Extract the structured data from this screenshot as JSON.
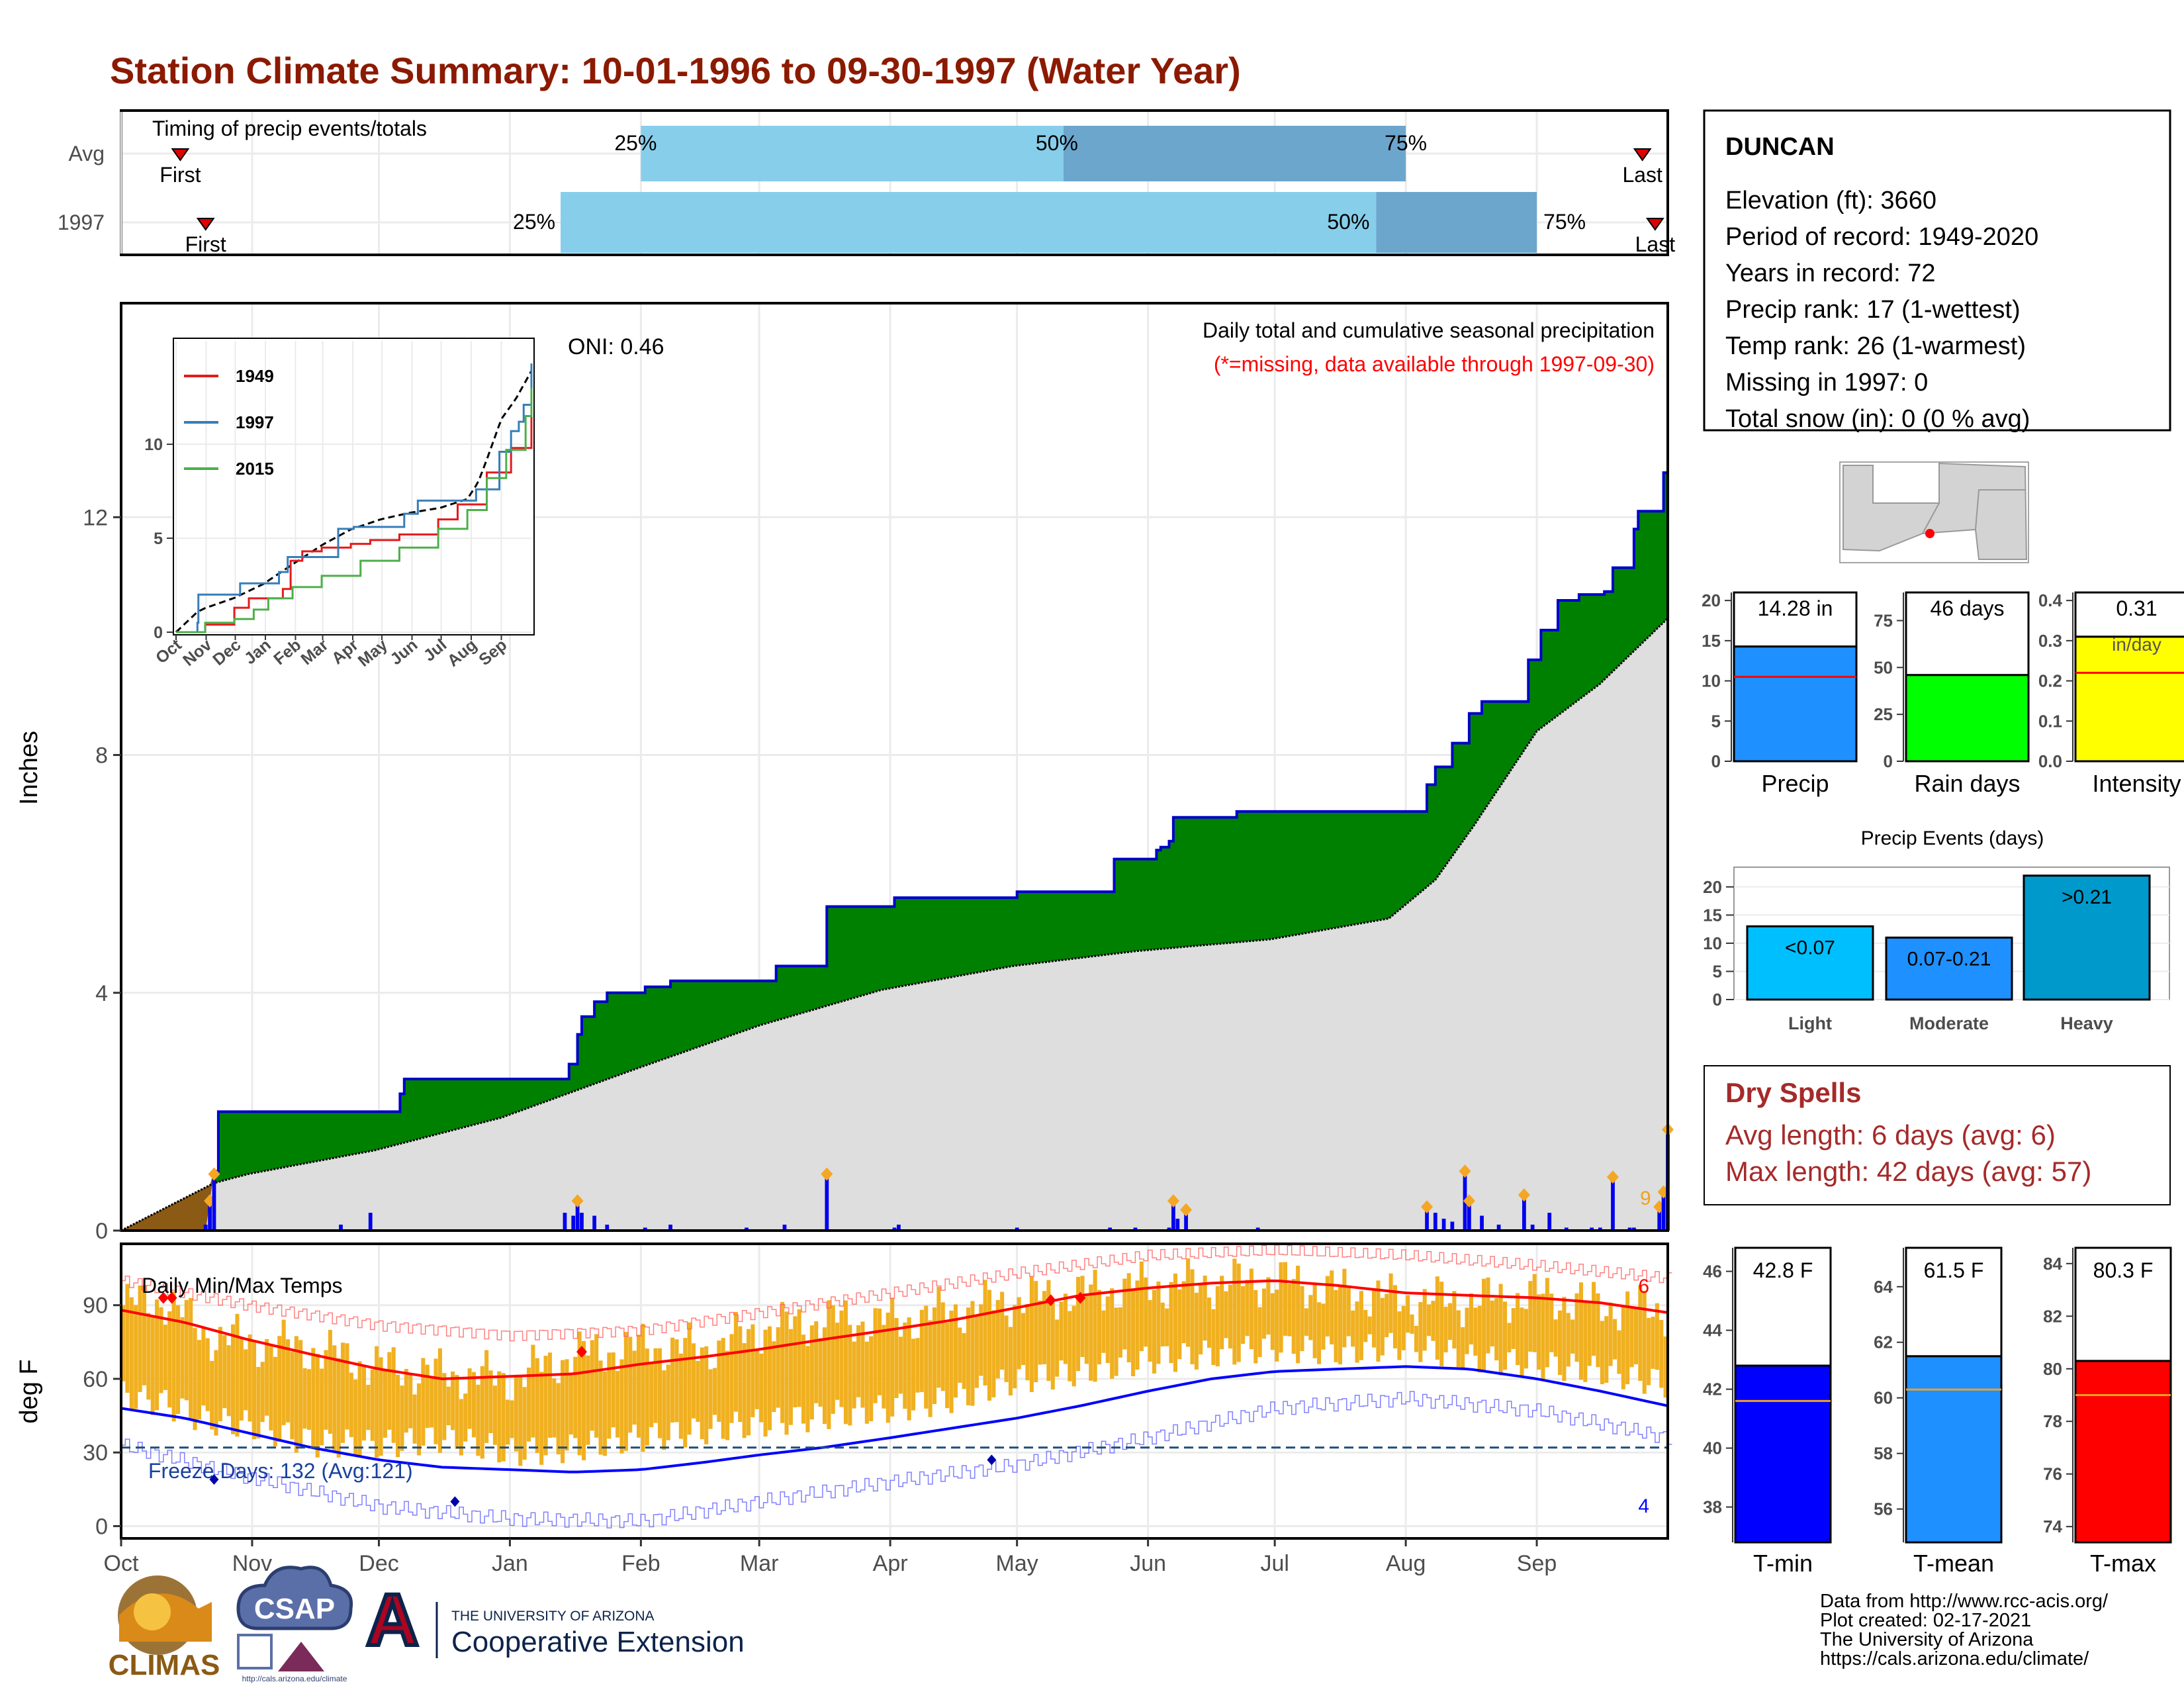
{
  "title": "Station Climate Summary: 10-01-1996 to 09-30-1997 (Water Year)",
  "colors": {
    "title": "#8B1A00",
    "green": "#008000",
    "blue_line": "#0000CC",
    "gray_fill": "#DEDEDE",
    "brown": "#8B5A14",
    "orange": "#F0B020",
    "tmax_line": "#FF0000",
    "tmin_line": "#0000FF",
    "light_blue": "#87CEEB",
    "steel_blue": "#6CA6CD",
    "dry_red": "#A52A2A"
  },
  "timing": {
    "label": "Timing of precip events/totals",
    "rows": [
      {
        "name": "Avg",
        "first": "First",
        "last": "Last",
        "p25": "25%",
        "p50": "50%",
        "p75": "75%",
        "first_date": "1996-10-15",
        "p25_date": "1997-02-01",
        "p50_date": "1997-05-12",
        "p75_date": "1997-08-01",
        "last_date": "1997-09-26"
      },
      {
        "name": "1997",
        "first": "First",
        "last": "Last",
        "p25": "25%",
        "p50": "50%",
        "p75": "75%",
        "first_date": "1996-10-21",
        "p25_date": "1997-01-13",
        "p50_date": "1997-07-25",
        "p75_date": "1997-09-01",
        "last_date": "1997-09-29"
      }
    ]
  },
  "precip_panel": {
    "ylabel": "Inches",
    "header": "Daily total and cumulative seasonal precipitation",
    "missing_note": "(*=missing, data available through 1997-09-30)",
    "oni": "ONI: 0.46",
    "count_label": "9",
    "yticks": [
      "0",
      "4",
      "8",
      "12"
    ],
    "inset": {
      "series": [
        {
          "name": "1949",
          "color": "#E41A1C"
        },
        {
          "name": "1997",
          "color": "#377EB8"
        },
        {
          "name": "2015",
          "color": "#4DAF4A"
        }
      ],
      "yticks": [
        "0",
        "5",
        "10"
      ],
      "xticks": [
        "Oct",
        "Nov",
        "Dec",
        "Jan",
        "Feb",
        "Mar",
        "Apr",
        "May",
        "Jun",
        "Jul",
        "Aug",
        "Sep"
      ]
    }
  },
  "temp_panel": {
    "ylabel": "deg F",
    "header": "Daily Min/Max Temps",
    "freeze_label": "Freeze Days: 132 (Avg:121)",
    "max_count": "6",
    "min_count": "4",
    "yticks": [
      "0",
      "30",
      "60",
      "90"
    ]
  },
  "x_months": [
    "Oct",
    "Nov",
    "Dec",
    "Jan",
    "Feb",
    "Mar",
    "Apr",
    "May",
    "Jun",
    "Jul",
    "Aug",
    "Sep"
  ],
  "station": {
    "name": "DUNCAN",
    "lines": [
      "Elevation (ft): 3660",
      "Period of record: 1949-2020",
      "Years in record: 72",
      "Precip rank: 17 (1-wettest)",
      "Temp rank: 26 (1-warmest)",
      "Missing in 1997: 0",
      "Total snow (in): 0 (0 % avg)"
    ]
  },
  "mini_bars": [
    {
      "label": "Precip",
      "value_text": "14.28 in",
      "value": 14.28,
      "avg": 10.5,
      "ymax": 21,
      "yticks": [
        "0",
        "5",
        "10",
        "15",
        "20"
      ],
      "tickvals": [
        0,
        5,
        10,
        15,
        20
      ],
      "color": "#1E90FF"
    },
    {
      "label": "Rain days",
      "value_text": "46 days",
      "value": 46,
      "avg": 47,
      "ymax": 90,
      "yticks": [
        "0",
        "25",
        "50",
        "75"
      ],
      "tickvals": [
        0,
        25,
        50,
        75
      ],
      "color": "#00FF00"
    },
    {
      "label": "Intensity",
      "value_text": "0.31",
      "value_text2": "in/day",
      "value": 0.31,
      "avg": 0.22,
      "ymax": 0.42,
      "yticks": [
        "0.0",
        "0.1",
        "0.2",
        "0.3",
        "0.4"
      ],
      "tickvals": [
        0,
        0.1,
        0.2,
        0.3,
        0.4
      ],
      "color": "#FFFF00"
    }
  ],
  "events": {
    "title": "Precip Events (days)",
    "yticks": [
      "0",
      "5",
      "10",
      "15",
      "20"
    ],
    "bars": [
      {
        "label": "Light",
        "range": "<0.07",
        "value": 13
      },
      {
        "label": "Moderate",
        "range": "0.07-0.21",
        "value": 11
      },
      {
        "label": "Heavy",
        "range": ">0.21",
        "value": 22
      }
    ]
  },
  "dry_spells": {
    "title": "Dry Spells",
    "avg": "Avg length: 6 days (avg: 6)",
    "max": "Max length: 42 days (avg: 57)"
  },
  "temp_bars": [
    {
      "label": "T-min",
      "value_text": "42.8 F",
      "value": 42.8,
      "avg": 41.6,
      "ymin": 36.8,
      "ymax": 46.8,
      "yticks": [
        "38",
        "40",
        "42",
        "44",
        "46"
      ],
      "tickvals": [
        38,
        40,
        42,
        44,
        46
      ],
      "color": "#0000FF"
    },
    {
      "label": "T-mean",
      "value_text": "61.5 F",
      "value": 61.5,
      "avg": 60.3,
      "ymin": 54.8,
      "ymax": 65.4,
      "yticks": [
        "56",
        "58",
        "60",
        "62",
        "64"
      ],
      "tickvals": [
        56,
        58,
        60,
        62,
        64
      ],
      "color": "#1E90FF"
    },
    {
      "label": "T-max",
      "value_text": "80.3 F",
      "value": 80.3,
      "avg": 79.0,
      "ymin": 73.4,
      "ymax": 84.6,
      "yticks": [
        "74",
        "76",
        "78",
        "80",
        "82",
        "84"
      ],
      "tickvals": [
        74,
        76,
        78,
        80,
        82,
        84
      ],
      "color": "#FF0000"
    }
  ],
  "footer": {
    "lines": [
      "Data from http://www.rcc-acis.org/",
      "Plot created: 02-17-2021",
      "The University of Arizona",
      "https://cals.arizona.edu/climate/"
    ]
  },
  "logos": {
    "climas": "CLIMAS",
    "csap": "CSAP",
    "csap_url": "http://cals.arizona.edu/climate",
    "ua_small": "THE UNIVERSITY OF ARIZONA",
    "ua_big": "Cooperative Extension",
    "ua_letter": "A"
  },
  "chart_data": [
    {
      "type": "area",
      "title": "Daily total and cumulative seasonal precipitation",
      "ylabel": "Inches",
      "ylim": [
        0,
        15.6
      ],
      "x_start": "1996-10-01",
      "x_end": "1997-09-30",
      "cumulative_1997": [
        [
          0,
          0
        ],
        [
          20,
          0
        ],
        [
          21,
          0.5
        ],
        [
          22,
          1.0
        ],
        [
          23,
          2.0
        ],
        [
          55,
          2.0
        ],
        [
          66,
          2.3
        ],
        [
          67,
          2.55
        ],
        [
          105,
          2.55
        ],
        [
          106,
          2.8
        ],
        [
          108,
          3.3
        ],
        [
          109,
          3.6
        ],
        [
          112,
          3.85
        ],
        [
          115,
          4.0
        ],
        [
          124,
          4.1
        ],
        [
          130,
          4.2
        ],
        [
          154,
          4.2
        ],
        [
          155,
          4.45
        ],
        [
          166,
          4.45
        ],
        [
          167,
          5.45
        ],
        [
          182,
          5.45
        ],
        [
          183,
          5.6
        ],
        [
          211,
          5.6
        ],
        [
          212,
          5.7
        ],
        [
          234,
          5.7
        ],
        [
          235,
          6.25
        ],
        [
          244,
          6.25
        ],
        [
          245,
          6.4
        ],
        [
          246,
          6.45
        ],
        [
          248,
          6.55
        ],
        [
          249,
          6.95
        ],
        [
          257,
          6.95
        ],
        [
          264,
          7.05
        ],
        [
          308,
          7.05
        ],
        [
          309,
          7.5
        ],
        [
          311,
          7.8
        ],
        [
          315,
          8.2
        ],
        [
          319,
          8.7
        ],
        [
          322,
          8.9
        ],
        [
          332,
          8.9
        ],
        [
          333,
          9.6
        ],
        [
          336,
          10.1
        ],
        [
          340,
          10.6
        ],
        [
          345,
          10.7
        ],
        [
          350,
          10.7
        ],
        [
          351,
          10.75
        ],
        [
          353,
          11.15
        ],
        [
          357,
          11.15
        ],
        [
          358,
          11.8
        ],
        [
          359,
          12.1
        ],
        [
          364,
          12.1
        ],
        [
          365,
          12.75
        ],
        [
          366,
          14.28
        ]
      ],
      "cumulative_avg": [
        [
          0,
          0
        ],
        [
          22,
          0.8
        ],
        [
          30,
          0.95
        ],
        [
          60,
          1.35
        ],
        [
          90,
          1.9
        ],
        [
          121,
          2.7
        ],
        [
          151,
          3.45
        ],
        [
          180,
          4.05
        ],
        [
          211,
          4.45
        ],
        [
          240,
          4.7
        ],
        [
          272,
          4.9
        ],
        [
          300,
          5.25
        ],
        [
          311,
          5.9
        ],
        [
          320,
          6.8
        ],
        [
          335,
          8.4
        ],
        [
          350,
          9.2
        ],
        [
          366,
          10.3
        ]
      ],
      "daily_precip": [
        [
          20,
          0.1
        ],
        [
          21,
          0.5
        ],
        [
          22,
          0.95
        ],
        [
          52,
          0.1
        ],
        [
          59,
          0.3
        ],
        [
          105,
          0.3
        ],
        [
          107,
          0.25
        ],
        [
          108,
          0.5
        ],
        [
          109,
          0.3
        ],
        [
          112,
          0.25
        ],
        [
          115,
          0.1
        ],
        [
          124,
          0.05
        ],
        [
          130,
          0.1
        ],
        [
          148,
          0.05
        ],
        [
          157,
          0.1
        ],
        [
          167,
          0.95
        ],
        [
          183,
          0.05
        ],
        [
          184,
          0.1
        ],
        [
          212,
          0.05
        ],
        [
          234,
          0.05
        ],
        [
          240,
          0.05
        ],
        [
          248,
          0.05
        ],
        [
          249,
          0.5
        ],
        [
          250,
          0.2
        ],
        [
          252,
          0.35
        ],
        [
          269,
          0.05
        ],
        [
          309,
          0.4
        ],
        [
          311,
          0.3
        ],
        [
          313,
          0.2
        ],
        [
          315,
          0.15
        ],
        [
          318,
          1.0
        ],
        [
          319,
          0.5
        ],
        [
          322,
          0.25
        ],
        [
          326,
          0.1
        ],
        [
          332,
          0.6
        ],
        [
          334,
          0.1
        ],
        [
          338,
          0.3
        ],
        [
          342,
          0.05
        ],
        [
          348,
          0.05
        ],
        [
          350,
          0.05
        ],
        [
          353,
          0.9
        ],
        [
          357,
          0.05
        ],
        [
          358,
          0.05
        ],
        [
          364,
          0.4
        ],
        [
          365,
          0.65
        ],
        [
          366,
          1.7
        ]
      ],
      "missing_days": []
    },
    {
      "type": "line",
      "title": "Daily Min/Max Temps",
      "ylabel": "deg F",
      "ylim": [
        -5,
        115
      ],
      "normal_max": [
        [
          0,
          88
        ],
        [
          15,
          83
        ],
        [
          30,
          76
        ],
        [
          45,
          70
        ],
        [
          61,
          64
        ],
        [
          76,
          60
        ],
        [
          92,
          61
        ],
        [
          107,
          62
        ],
        [
          123,
          66
        ],
        [
          138,
          69
        ],
        [
          151,
          72
        ],
        [
          166,
          76
        ],
        [
          182,
          80
        ],
        [
          197,
          84
        ],
        [
          212,
          89
        ],
        [
          227,
          94
        ],
        [
          243,
          97
        ],
        [
          258,
          99
        ],
        [
          273,
          100
        ],
        [
          288,
          98
        ],
        [
          304,
          95
        ],
        [
          319,
          94
        ],
        [
          335,
          93
        ],
        [
          350,
          91
        ],
        [
          366,
          87
        ]
      ],
      "normal_min": [
        [
          0,
          48
        ],
        [
          15,
          44
        ],
        [
          30,
          38
        ],
        [
          45,
          32
        ],
        [
          61,
          27
        ],
        [
          76,
          24
        ],
        [
          92,
          23
        ],
        [
          107,
          22
        ],
        [
          123,
          23
        ],
        [
          138,
          26
        ],
        [
          151,
          29
        ],
        [
          166,
          32
        ],
        [
          182,
          36
        ],
        [
          197,
          40
        ],
        [
          212,
          44
        ],
        [
          227,
          49
        ],
        [
          243,
          55
        ],
        [
          258,
          60
        ],
        [
          273,
          63
        ],
        [
          288,
          64
        ],
        [
          304,
          65
        ],
        [
          319,
          64
        ],
        [
          335,
          60
        ],
        [
          350,
          55
        ],
        [
          366,
          49
        ]
      ],
      "record_max": [
        [
          0,
          100
        ],
        [
          30,
          90
        ],
        [
          61,
          82
        ],
        [
          92,
          78
        ],
        [
          123,
          80
        ],
        [
          151,
          87
        ],
        [
          182,
          95
        ],
        [
          212,
          103
        ],
        [
          243,
          110
        ],
        [
          273,
          112
        ],
        [
          304,
          110
        ],
        [
          335,
          106
        ],
        [
          366,
          101
        ]
      ],
      "record_min": [
        [
          0,
          33
        ],
        [
          30,
          20
        ],
        [
          61,
          8
        ],
        [
          92,
          3
        ],
        [
          123,
          2
        ],
        [
          151,
          10
        ],
        [
          182,
          18
        ],
        [
          212,
          25
        ],
        [
          243,
          36
        ],
        [
          273,
          48
        ],
        [
          304,
          52
        ],
        [
          335,
          47
        ],
        [
          366,
          36
        ]
      ],
      "daily_max_1997": [
        [
          0,
          90
        ],
        [
          10,
          92
        ],
        [
          20,
          78
        ],
        [
          30,
          75
        ],
        [
          45,
          72
        ],
        [
          61,
          65
        ],
        [
          76,
          62
        ],
        [
          92,
          60
        ],
        [
          107,
          70
        ],
        [
          123,
          73
        ],
        [
          138,
          72
        ],
        [
          151,
          80
        ],
        [
          166,
          84
        ],
        [
          182,
          83
        ],
        [
          197,
          88
        ],
        [
          212,
          92
        ],
        [
          227,
          95
        ],
        [
          243,
          98
        ],
        [
          258,
          99
        ],
        [
          273,
          100
        ],
        [
          288,
          96
        ],
        [
          304,
          92
        ],
        [
          319,
          92
        ],
        [
          335,
          94
        ],
        [
          350,
          90
        ],
        [
          366,
          88
        ]
      ],
      "daily_min_1997": [
        [
          0,
          45
        ],
        [
          10,
          42
        ],
        [
          20,
          35
        ],
        [
          30,
          33
        ],
        [
          45,
          26
        ],
        [
          61,
          25
        ],
        [
          76,
          28
        ],
        [
          92,
          22
        ],
        [
          107,
          24
        ],
        [
          123,
          28
        ],
        [
          138,
          31
        ],
        [
          151,
          34
        ],
        [
          166,
          37
        ],
        [
          182,
          40
        ],
        [
          197,
          44
        ],
        [
          212,
          52
        ],
        [
          227,
          55
        ],
        [
          243,
          60
        ],
        [
          258,
          62
        ],
        [
          273,
          65
        ],
        [
          288,
          63
        ],
        [
          304,
          66
        ],
        [
          319,
          60
        ],
        [
          335,
          58
        ],
        [
          350,
          55
        ],
        [
          366,
          50
        ]
      ],
      "freeze_line": 32
    }
  ]
}
